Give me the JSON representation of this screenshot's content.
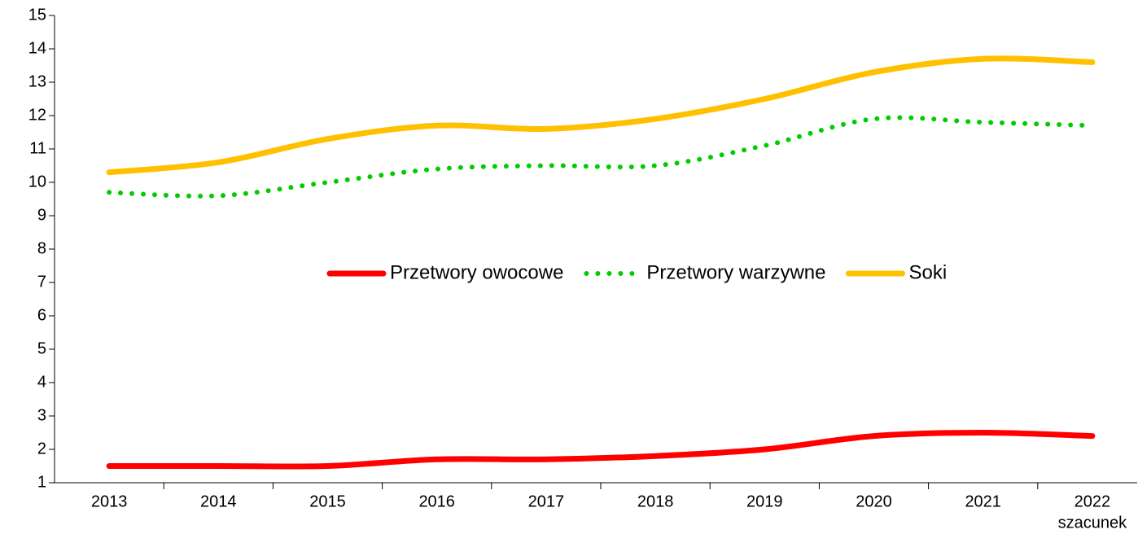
{
  "chart_data": {
    "type": "line",
    "categories": [
      "2013",
      "2014",
      "2015",
      "2016",
      "2017",
      "2018",
      "2019",
      "2020",
      "2021",
      "2022"
    ],
    "annotation": "szacunek",
    "series": [
      {
        "name": "Przetwory owocowe",
        "color": "#ff0000",
        "style": "solid",
        "values": [
          1.5,
          1.5,
          1.5,
          1.7,
          1.7,
          1.8,
          2.0,
          2.4,
          2.5,
          2.4
        ]
      },
      {
        "name": "Przetwory warzywne",
        "color": "#00cc00",
        "style": "dotted",
        "values": [
          9.7,
          9.6,
          10.0,
          10.4,
          10.5,
          10.5,
          11.1,
          11.9,
          11.8,
          11.7
        ]
      },
      {
        "name": "Soki",
        "color": "#ffc000",
        "style": "solid",
        "values": [
          10.3,
          10.6,
          11.3,
          11.7,
          11.6,
          11.9,
          12.5,
          13.3,
          13.7,
          13.6
        ]
      }
    ],
    "ylim": [
      1,
      15
    ],
    "yticks": [
      1,
      2,
      3,
      4,
      5,
      6,
      7,
      8,
      9,
      10,
      11,
      12,
      13,
      14,
      15
    ],
    "legend": "center",
    "grid": false
  }
}
